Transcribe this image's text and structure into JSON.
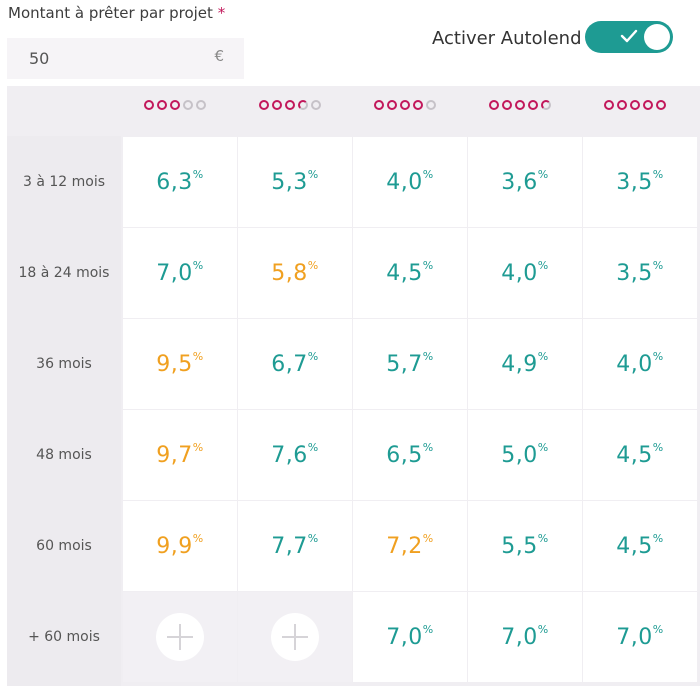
{
  "form": {
    "amount_label": "Montant à prêter par projet",
    "required_mark": "*",
    "amount_value": "50",
    "currency": "€"
  },
  "autolend": {
    "label": "Activer Autolend",
    "enabled": true
  },
  "colors": {
    "accent": "#1e9b93",
    "rating": "#c2185b",
    "warning": "#f0a020"
  },
  "ratings": [
    {
      "filled": 3,
      "half": 0,
      "total": 5
    },
    {
      "filled": 3,
      "half": 1,
      "total": 5
    },
    {
      "filled": 4,
      "half": 0,
      "total": 5
    },
    {
      "filled": 4,
      "half": 1,
      "total": 5
    },
    {
      "filled": 5,
      "half": 0,
      "total": 5
    }
  ],
  "durations": [
    "3 à 12 mois",
    "18 à 24 mois",
    "36 mois",
    "48 mois",
    "60 mois",
    "+ 60 mois"
  ],
  "rates": [
    [
      {
        "v": "6,3",
        "u": "%",
        "c": "teal"
      },
      {
        "v": "5,3",
        "u": "%",
        "c": "teal"
      },
      {
        "v": "4,0",
        "u": "%",
        "c": "teal"
      },
      {
        "v": "3,6",
        "u": "%",
        "c": "teal"
      },
      {
        "v": "3,5",
        "u": "%",
        "c": "teal"
      }
    ],
    [
      {
        "v": "7,0",
        "u": "%",
        "c": "teal"
      },
      {
        "v": "5,8",
        "u": "%",
        "c": "orange"
      },
      {
        "v": "4,5",
        "u": "%",
        "c": "teal"
      },
      {
        "v": "4,0",
        "u": "%",
        "c": "teal"
      },
      {
        "v": "3,5",
        "u": "%",
        "c": "teal"
      }
    ],
    [
      {
        "v": "9,5",
        "u": "%",
        "c": "orange"
      },
      {
        "v": "6,7",
        "u": "%",
        "c": "teal"
      },
      {
        "v": "5,7",
        "u": "%",
        "c": "teal"
      },
      {
        "v": "4,9",
        "u": "%",
        "c": "teal"
      },
      {
        "v": "4,0",
        "u": "%",
        "c": "teal"
      }
    ],
    [
      {
        "v": "9,7",
        "u": "%",
        "c": "orange"
      },
      {
        "v": "7,6",
        "u": "%",
        "c": "teal"
      },
      {
        "v": "6,5",
        "u": "%",
        "c": "teal"
      },
      {
        "v": "5,0",
        "u": "%",
        "c": "teal"
      },
      {
        "v": "4,5",
        "u": "%",
        "c": "teal"
      }
    ],
    [
      {
        "v": "9,9",
        "u": "%",
        "c": "orange"
      },
      {
        "v": "7,7",
        "u": "%",
        "c": "teal"
      },
      {
        "v": "7,2",
        "u": "%",
        "c": "orange"
      },
      {
        "v": "5,5",
        "u": "%",
        "c": "teal"
      },
      {
        "v": "4,5",
        "u": "%",
        "c": "teal"
      }
    ],
    [
      null,
      null,
      {
        "v": "7,0",
        "u": "%",
        "c": "teal"
      },
      {
        "v": "7,0",
        "u": "%",
        "c": "teal"
      },
      {
        "v": "7,0",
        "u": "%",
        "c": "teal"
      }
    ]
  ]
}
